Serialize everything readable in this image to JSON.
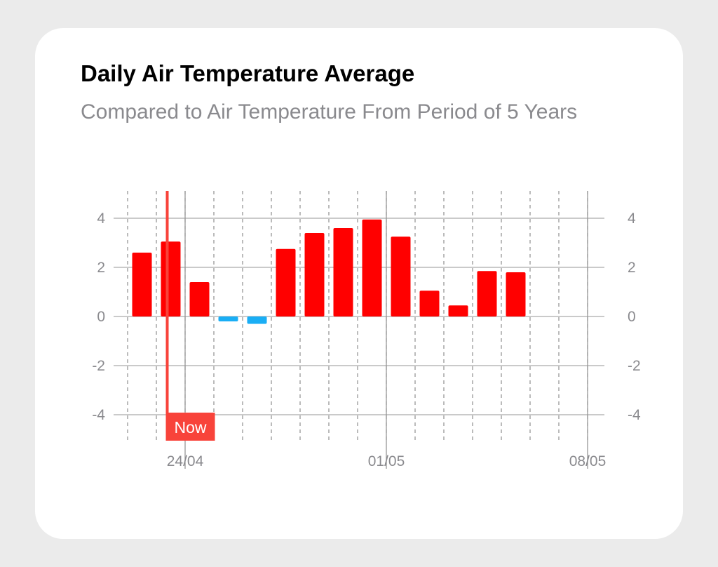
{
  "colors": {
    "positive": "#ff0000",
    "negative": "#1aaef5",
    "now_marker": "#f8433a",
    "grid": "#b8b8b8",
    "label": "#8a8a8e"
  },
  "chart_data": {
    "type": "bar",
    "title": "Daily Air Temperature Average",
    "subtitle": "Compared to Air Temperature From Period of 5 Years",
    "x": [
      "22/04",
      "23/04",
      "24/04",
      "25/04",
      "26/04",
      "27/04",
      "28/04",
      "29/04",
      "30/04",
      "01/05",
      "02/05",
      "03/05",
      "04/05",
      "05/05",
      "06/05",
      "07/05",
      "08/05"
    ],
    "values": [
      2.6,
      3.05,
      1.4,
      -0.2,
      -0.3,
      2.75,
      3.4,
      3.6,
      3.95,
      3.25,
      1.05,
      0.45,
      1.85,
      1.8,
      null,
      null,
      null
    ],
    "x_tick_labels": [
      "24/04",
      "01/05",
      "08/05"
    ],
    "y_ticks": [
      4,
      2,
      0,
      -2,
      -4
    ],
    "y_tick_labels": [
      "4",
      "2",
      "0",
      "-2",
      "-4"
    ],
    "ylim": [
      -5,
      5
    ],
    "grid": true,
    "y_axis_labels": "both sides",
    "now_marker": {
      "x": "23/04",
      "label": "Now"
    }
  }
}
